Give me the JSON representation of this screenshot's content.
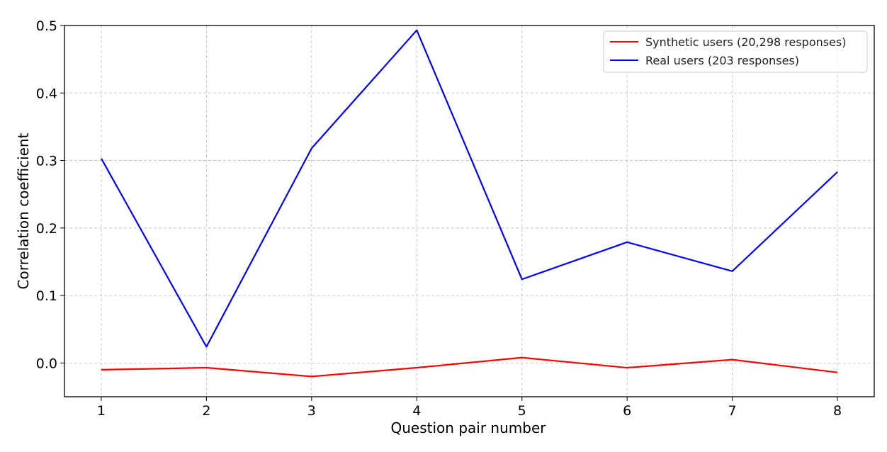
{
  "chart_data": {
    "type": "line",
    "title": "",
    "xlabel": "Question pair number",
    "ylabel": "Correlation coefficient",
    "x": [
      1,
      2,
      3,
      4,
      5,
      6,
      7,
      8
    ],
    "xticks": [
      "1",
      "2",
      "3",
      "4",
      "5",
      "6",
      "7",
      "8"
    ],
    "yticks": [
      "0.0",
      "0.1",
      "0.2",
      "0.3",
      "0.4",
      "0.5"
    ],
    "ylim": [
      -0.05,
      0.5
    ],
    "grid": true,
    "legend_position": "top-right",
    "series": [
      {
        "name": "Synthetic users (20,298 responses)",
        "color": "#ff0000",
        "values": [
          -0.01,
          -0.007,
          -0.02,
          -0.007,
          0.008,
          -0.007,
          0.005,
          -0.014
        ]
      },
      {
        "name": "Real users (203 responses)",
        "color": "#0000ff",
        "values": [
          0.303,
          0.024,
          0.318,
          0.493,
          0.124,
          0.179,
          0.136,
          0.283
        ]
      }
    ]
  }
}
